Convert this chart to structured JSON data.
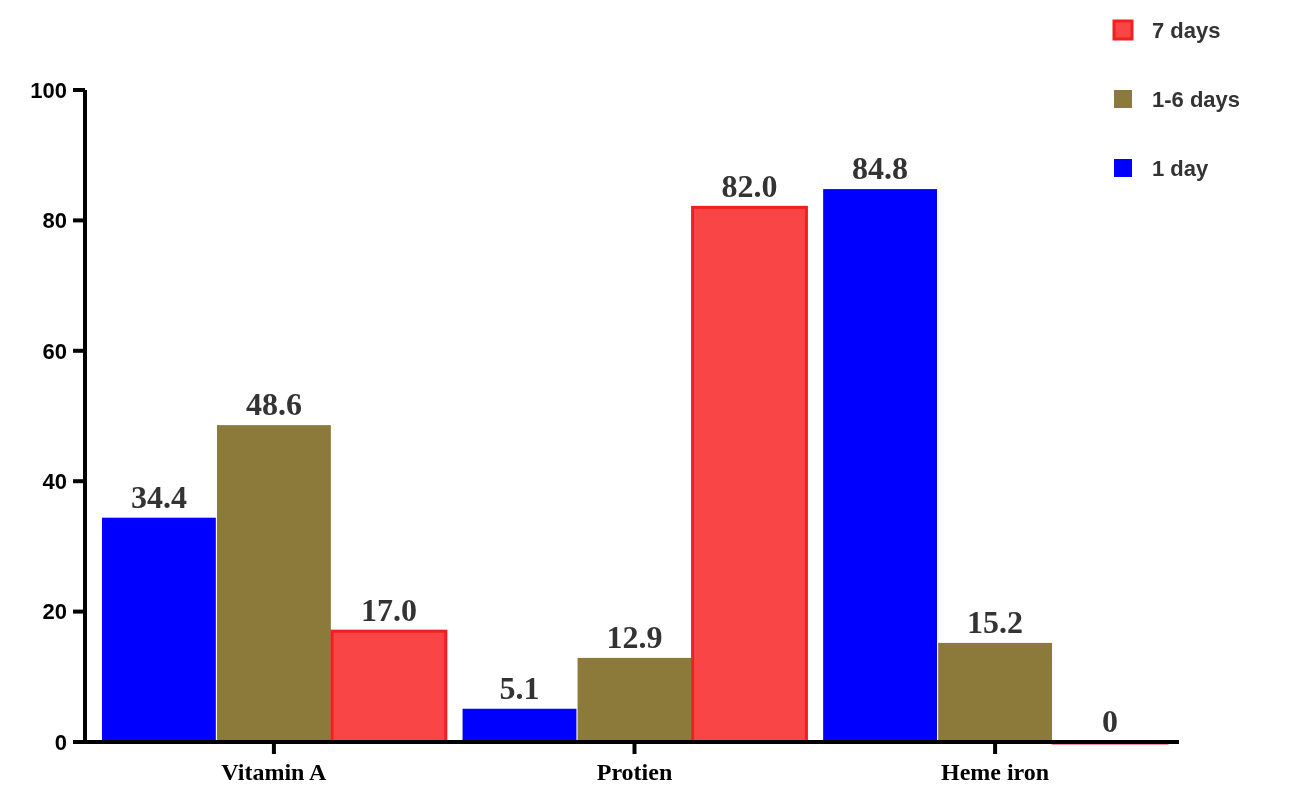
{
  "chart_data": {
    "type": "bar",
    "categories": [
      "Vitamin A",
      "Protien",
      "Heme iron"
    ],
    "series": [
      {
        "name": "1 day",
        "color": "#0000ff",
        "values": [
          34.4,
          5.1,
          84.8
        ],
        "value_labels": [
          "34.4",
          "5.1",
          "84.8"
        ]
      },
      {
        "name": "1-6 days",
        "color": "#8b7a3a",
        "values": [
          48.6,
          12.9,
          15.2
        ],
        "value_labels": [
          "48.6",
          "12.9",
          "15.2"
        ]
      },
      {
        "name": "7 days",
        "color": "#f94545",
        "values": [
          17.0,
          82.0,
          0
        ],
        "value_labels": [
          "17.0",
          "82.0",
          "0"
        ]
      }
    ],
    "ylim": [
      0,
      100
    ],
    "yticks": [
      0,
      20,
      40,
      60,
      80,
      100
    ],
    "legend": "top right",
    "grid": false
  }
}
